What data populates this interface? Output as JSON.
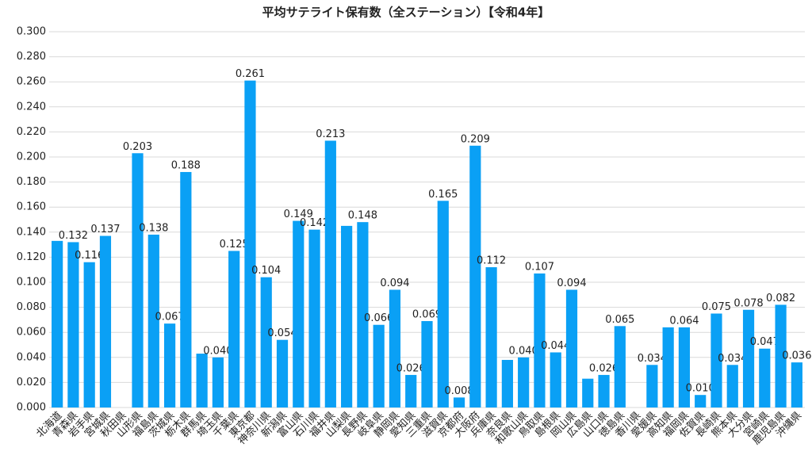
{
  "chart_data": {
    "type": "bar",
    "title": "平均サテライト保有数（全ステーション）【令和4年】",
    "categories": [
      "北海道",
      "青森県",
      "岩手県",
      "宮城県",
      "秋田県",
      "山形県",
      "福島県",
      "茨城県",
      "栃木県",
      "群馬県",
      "埼玉県",
      "千葉県",
      "東京都",
      "神奈川県",
      "新潟県",
      "富山県",
      "石川県",
      "福井県",
      "山梨県",
      "長野県",
      "岐阜県",
      "静岡県",
      "愛知県",
      "三重県",
      "滋賀県",
      "京都府",
      "大阪府",
      "兵庫県",
      "奈良県",
      "和歌山県",
      "鳥取県",
      "島根県",
      "岡山県",
      "広島県",
      "山口県",
      "徳島県",
      "香川県",
      "愛媛県",
      "高知県",
      "福岡県",
      "佐賀県",
      "長崎県",
      "熊本県",
      "大分県",
      "宮崎県",
      "鹿児島県",
      "沖縄県"
    ],
    "values": [
      0.133,
      0.132,
      0.116,
      0.137,
      null,
      0.203,
      0.138,
      0.067,
      0.188,
      0.043,
      0.04,
      0.125,
      0.261,
      0.104,
      0.054,
      0.149,
      0.142,
      0.213,
      0.145,
      0.148,
      0.066,
      0.094,
      0.026,
      0.069,
      0.165,
      0.008,
      0.209,
      0.112,
      0.038,
      0.04,
      0.107,
      0.044,
      0.094,
      0.023,
      0.026,
      0.065,
      null,
      0.034,
      0.064,
      0.064,
      0.01,
      0.075,
      0.034,
      0.078,
      0.047,
      0.082,
      0.036
    ],
    "value_labels": [
      null,
      "0.132",
      "0.116",
      "0.137",
      null,
      "0.203",
      "0.138",
      "0.067",
      "0.188",
      null,
      "0.040",
      "0.125",
      "0.261",
      "0.104",
      "0.054",
      "0.149",
      "0.142",
      "0.213",
      null,
      "0.148",
      "0.066",
      "0.094",
      "0.026",
      "0.069",
      "0.165",
      "0.008",
      "0.209",
      "0.112",
      null,
      "0.040",
      "0.107",
      "0.044",
      "0.094",
      null,
      "0.026",
      "0.065",
      null,
      "0.034",
      null,
      "0.064",
      "0.010",
      "0.075",
      "0.034",
      "0.078",
      "0.047",
      "0.082",
      "0.036"
    ],
    "color": "#0aa0f5",
    "ylim": [
      0,
      0.3
    ],
    "yticks": [
      {
        "value": 0,
        "label": "0.000"
      },
      {
        "value": 0.02,
        "label": "0.020"
      },
      {
        "value": 0.04,
        "label": "0.040"
      },
      {
        "value": 0.06,
        "label": "0.060"
      },
      {
        "value": 0.08,
        "label": "0.080"
      },
      {
        "value": 0.1,
        "label": "0.100"
      },
      {
        "value": 0.12,
        "label": "0.120"
      },
      {
        "value": 0.14,
        "label": "0.140"
      },
      {
        "value": 0.16,
        "label": "0.160"
      },
      {
        "value": 0.18,
        "label": "0.180"
      },
      {
        "value": 0.2,
        "label": "0.200"
      },
      {
        "value": 0.22,
        "label": "0.220"
      },
      {
        "value": 0.24,
        "label": "0.240"
      },
      {
        "value": 0.26,
        "label": "0.260"
      },
      {
        "value": 0.28,
        "label": "0.280"
      },
      {
        "value": 0.3,
        "label": "0.300"
      }
    ],
    "grid": true
  }
}
